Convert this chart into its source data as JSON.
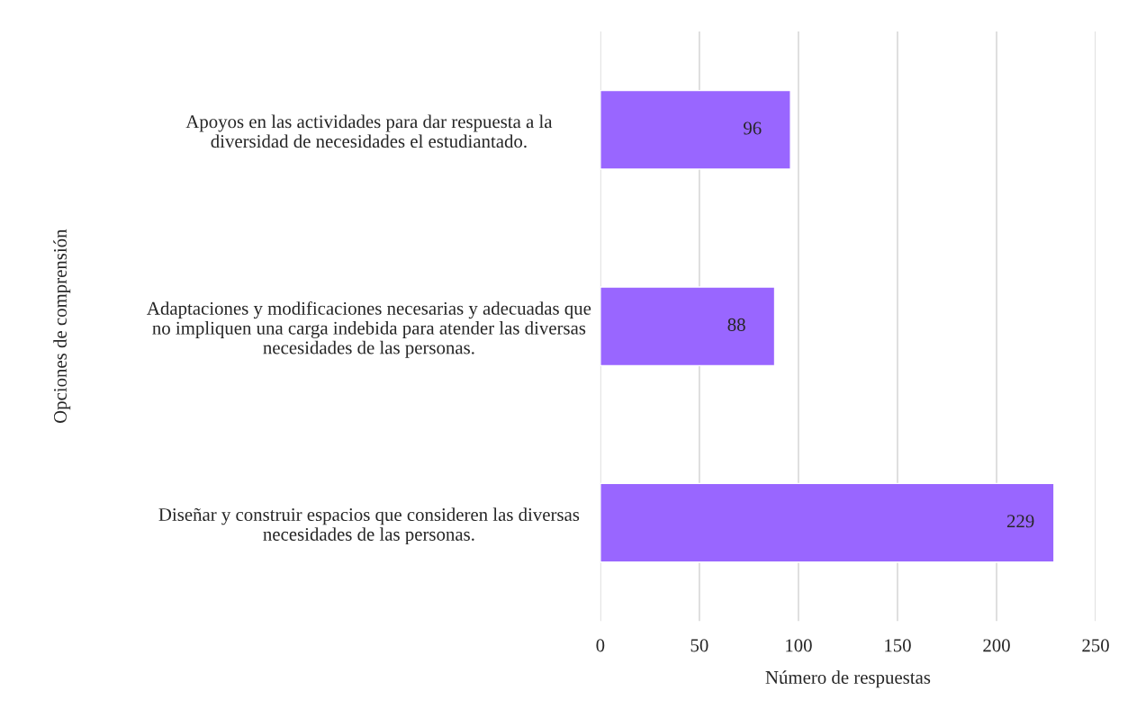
{
  "chart_data": {
    "type": "bar",
    "orientation": "horizontal",
    "categories": [
      "Apoyos en las actividades para dar respuesta a la\ndiversidad de necesidades el estudiantado.",
      "Adaptaciones y modificaciones necesarias y adecuadas que\nno impliquen una carga indebida para atender las diversas\nnecesidades de las personas.",
      "Diseñar y construir espacios que consideren las diversas\nnecesidades de las personas."
    ],
    "values": [
      96,
      88,
      229
    ],
    "color": "#9966ff",
    "xlim": [
      0,
      250
    ],
    "xticks": [
      0,
      50,
      100,
      150,
      200,
      250
    ],
    "xlabel": "Número de respuestas",
    "ylabel": "Opciones de comprensión",
    "data_labels": true,
    "grid": "x",
    "legend": false
  }
}
